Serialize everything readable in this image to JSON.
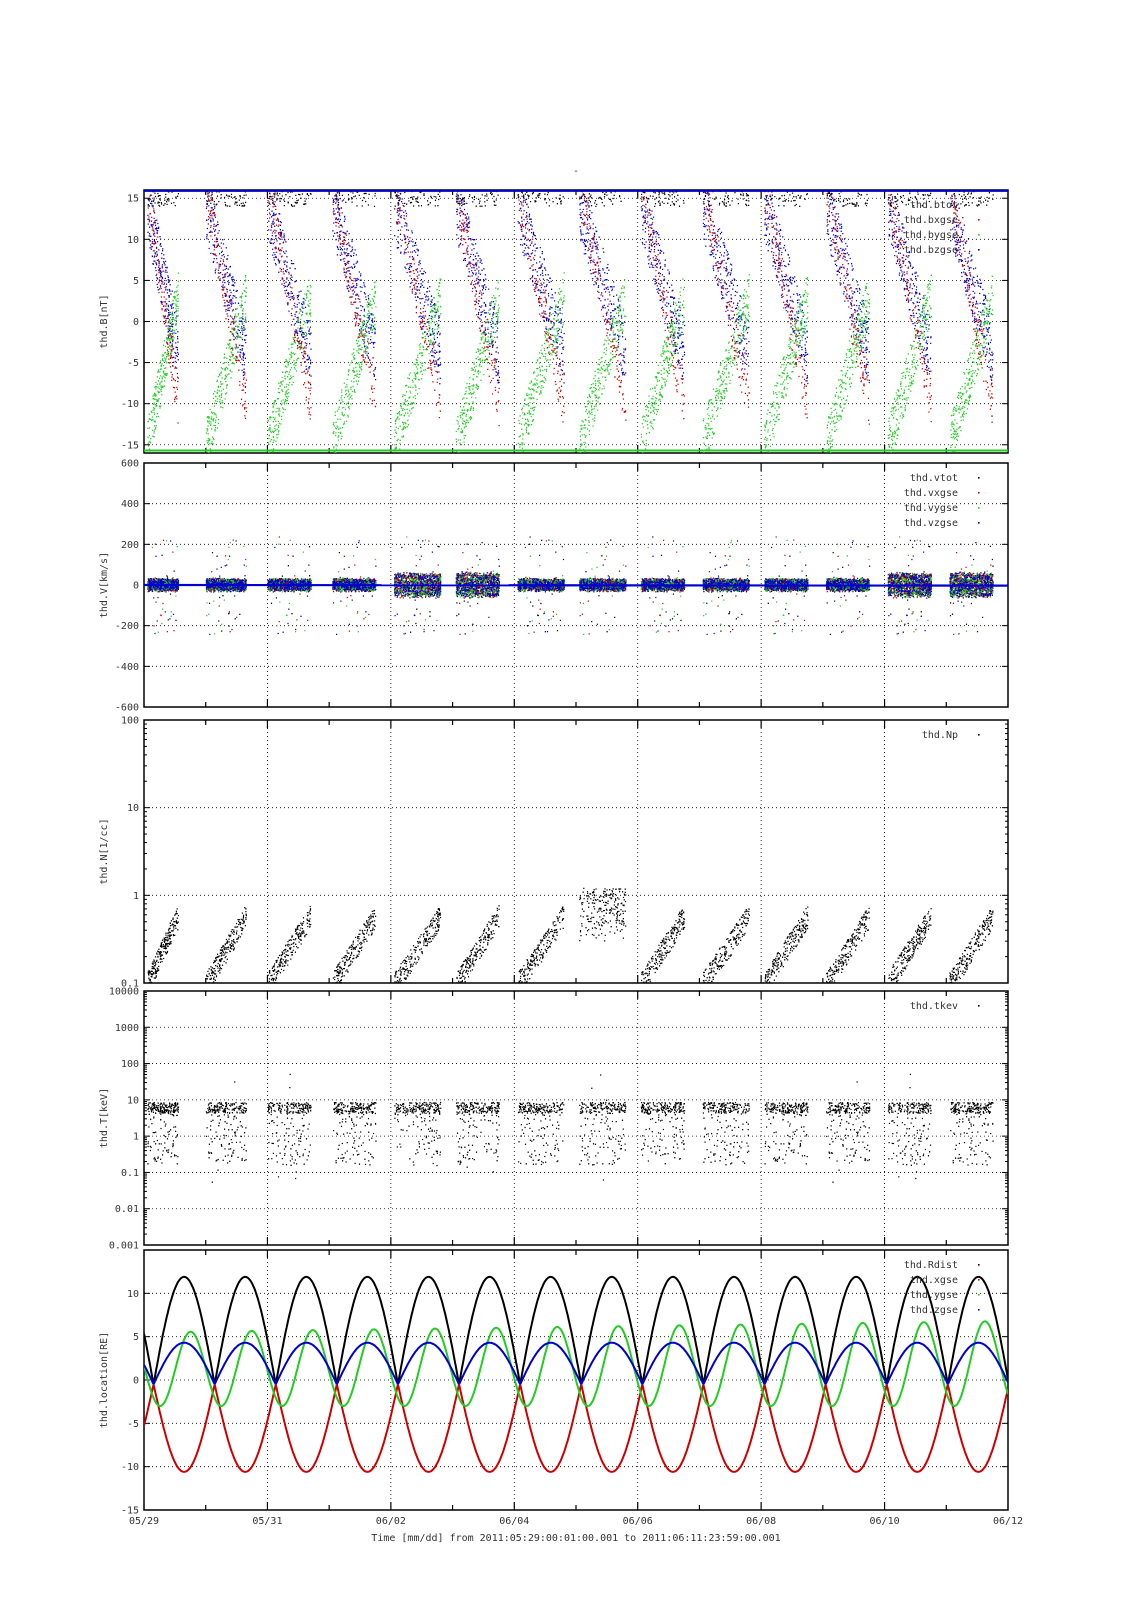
{
  "figure": {
    "title": "-",
    "time_axis": {
      "tick_labels": [
        "05/29",
        "05/31",
        "06/02",
        "06/04",
        "06/06",
        "06/08",
        "06/10",
        "06/12"
      ],
      "range_days": [
        0,
        14
      ],
      "label": "Time [mm/dd]  from 2011:05:29:00:01:00.001  to  2011:06:11:23:59:00.001"
    }
  },
  "colors": {
    "black": "#000000",
    "red": "#cc0000",
    "green": "#22cc22",
    "blue": "#0000cc"
  },
  "chart_data": [
    {
      "type": "scatter",
      "ylabel": "thd.B[nT]",
      "scale": "linear",
      "ylim": [
        -16,
        16
      ],
      "yticks": [
        -15,
        -10,
        -5,
        0,
        5,
        10,
        15
      ],
      "ytick_labels": [
        "-15",
        "-10",
        "-5",
        "0",
        "5",
        "10",
        "15"
      ],
      "grid": true,
      "legend_position": "top-right",
      "series": [
        {
          "name": "thd.btot",
          "color": "black"
        },
        {
          "name": "thd.bxgse",
          "color": "red"
        },
        {
          "name": "thd.bygse",
          "color": "green"
        },
        {
          "name": "thd.bzgse",
          "color": "blue"
        }
      ]
    },
    {
      "type": "scatter",
      "ylabel": "thd.V[km/s]",
      "scale": "linear",
      "ylim": [
        -600,
        600
      ],
      "yticks": [
        -600,
        -400,
        -200,
        0,
        200,
        400,
        600
      ],
      "ytick_labels": [
        "-600",
        "-400",
        "-200",
        "0",
        "200",
        "400",
        "600"
      ],
      "grid": true,
      "legend_position": "top-right",
      "series": [
        {
          "name": "thd.vtot",
          "color": "black"
        },
        {
          "name": "thd.vxgse",
          "color": "red"
        },
        {
          "name": "thd.vygse",
          "color": "green"
        },
        {
          "name": "thd.vzgse",
          "color": "blue"
        }
      ]
    },
    {
      "type": "scatter",
      "ylabel": "thd.N[1/cc]",
      "scale": "log",
      "ylim": [
        0.1,
        100
      ],
      "yticks": [
        0.1,
        1,
        10,
        100
      ],
      "ytick_labels": [
        "0.1",
        "1",
        "10",
        "100"
      ],
      "grid": true,
      "legend_position": "top-right",
      "series": [
        {
          "name": "thd.Np",
          "color": "black"
        }
      ]
    },
    {
      "type": "scatter",
      "ylabel": "thd.T[keV]",
      "scale": "log",
      "ylim": [
        0.001,
        10000
      ],
      "yticks": [
        0.001,
        0.01,
        0.1,
        1,
        10,
        100,
        1000,
        10000
      ],
      "ytick_labels": [
        "0.001",
        "0.01",
        "0.1",
        "1",
        "10",
        "100",
        "1000",
        "10000"
      ],
      "grid": true,
      "legend_position": "top-right",
      "series": [
        {
          "name": "thd.tkev",
          "color": "black"
        }
      ]
    },
    {
      "type": "line",
      "ylabel": "thd.location[RE]",
      "scale": "linear",
      "ylim": [
        -15,
        15
      ],
      "yticks": [
        -15,
        -10,
        -5,
        0,
        5,
        10
      ],
      "ytick_labels": [
        "-15",
        "-10",
        "-5",
        "0",
        "5",
        "10"
      ],
      "grid": true,
      "legend_position": "top-right",
      "orbit_period_days": 0.99,
      "first_apogee_day": 0.65,
      "series": [
        {
          "name": "thd.Rdist",
          "color": "black",
          "perigee": -0.5,
          "apogee": 11.9
        },
        {
          "name": "thd.xgse",
          "color": "red",
          "perigee": -0.5,
          "apogee": -10.6
        },
        {
          "name": "thd.ygse",
          "color": "green",
          "min": -3.0,
          "max": 5.5,
          "max_end": 6.8
        },
        {
          "name": "thd.zgse",
          "color": "blue",
          "perigee": -0.5,
          "apogee": 4.3
        }
      ]
    }
  ]
}
